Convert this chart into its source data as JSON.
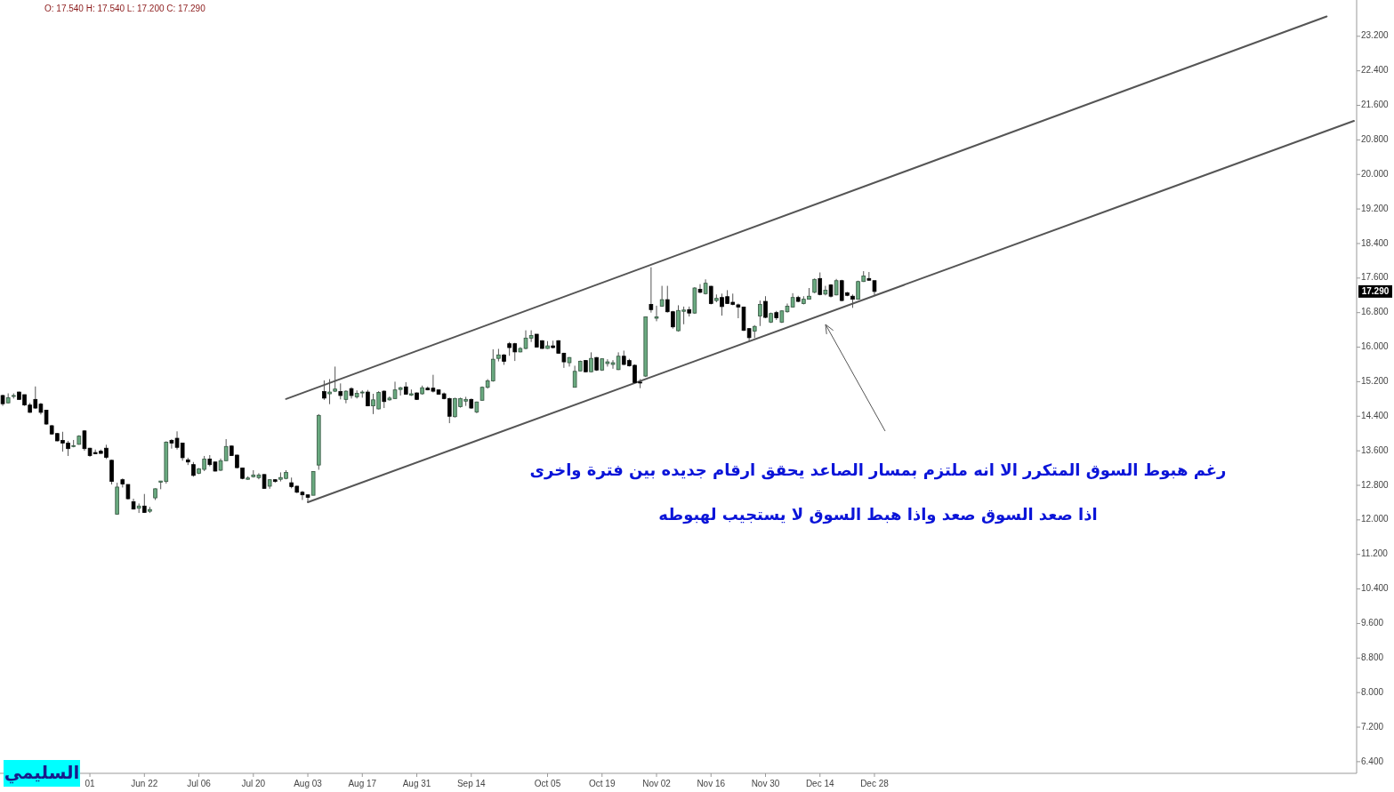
{
  "chart_data": {
    "type": "candlestick",
    "categories": [
      null,
      null,
      null,
      null,
      null,
      null,
      null,
      null,
      null,
      null,
      null,
      null,
      null,
      null,
      null,
      null,
      "01",
      null,
      null,
      null,
      null,
      null,
      null,
      null,
      null,
      null,
      "Jun 22",
      null,
      null,
      null,
      null,
      null,
      null,
      null,
      null,
      null,
      "Jul 06",
      null,
      null,
      null,
      null,
      null,
      null,
      null,
      null,
      null,
      "Jul 20",
      null,
      null,
      null,
      null,
      null,
      null,
      null,
      null,
      null,
      "Aug 03",
      null,
      null,
      null,
      null,
      null,
      null,
      null,
      null,
      null,
      "Aug 17",
      null,
      null,
      null,
      null,
      null,
      null,
      null,
      null,
      null,
      "Aug 31",
      null,
      null,
      null,
      null,
      null,
      null,
      null,
      null,
      null,
      "Sep 14",
      null,
      null,
      null,
      null,
      null,
      null,
      null,
      null,
      null,
      null,
      null,
      null,
      null,
      "Oct 05",
      null,
      null,
      null,
      null,
      null,
      null,
      null,
      null,
      null,
      "Oct 19",
      null,
      null,
      null,
      null,
      null,
      null,
      null,
      null,
      null,
      "Nov 02",
      null,
      null,
      null,
      null,
      null,
      null,
      null,
      null,
      null,
      "Nov 16",
      null,
      null,
      null,
      null,
      null,
      null,
      null,
      null,
      null,
      "Nov 30",
      null,
      null,
      null,
      null,
      null,
      null,
      null,
      null,
      null,
      "Dec 14",
      null,
      null,
      null,
      null,
      null,
      null,
      null,
      null,
      null,
      "Dec 28",
      null,
      null,
      null,
      null,
      null,
      null,
      null,
      null,
      null,
      null,
      null,
      null,
      null,
      null,
      null,
      null,
      null,
      null,
      null,
      null,
      null,
      null,
      null,
      null,
      null,
      null,
      null,
      null,
      null,
      null,
      null,
      null,
      null,
      null,
      null,
      null,
      null,
      null,
      null,
      null,
      null,
      null,
      null,
      null,
      null,
      null,
      null,
      null,
      null,
      null,
      null,
      null,
      null,
      null,
      null,
      null,
      null,
      null,
      null,
      null,
      null,
      null,
      null,
      null,
      null,
      null,
      null,
      null,
      null,
      null,
      null,
      null,
      null,
      null,
      null,
      null,
      null,
      null,
      null,
      null,
      null,
      null,
      null,
      null,
      null,
      null,
      null,
      null
    ],
    "ylim": [
      6.13,
      24.04
    ],
    "yticks": [
      {
        "value": 6.4,
        "label": "6.400"
      },
      {
        "value": 7.2,
        "label": "7.200"
      },
      {
        "value": 8.0,
        "label": "8.000"
      },
      {
        "value": 8.8,
        "label": "8.800"
      },
      {
        "value": 9.6,
        "label": "9.600"
      },
      {
        "value": 10.4,
        "label": "10.400"
      },
      {
        "value": 11.2,
        "label": "11.200"
      },
      {
        "value": 12.0,
        "label": "12.000"
      },
      {
        "value": 12.8,
        "label": "12.800"
      },
      {
        "value": 13.6,
        "label": "13.600"
      },
      {
        "value": 14.4,
        "label": "14.400"
      },
      {
        "value": 15.2,
        "label": "15.200"
      },
      {
        "value": 16.0,
        "label": "16.000"
      },
      {
        "value": 16.8,
        "label": "16.800"
      },
      {
        "value": 17.6,
        "label": "17.600"
      },
      {
        "value": 18.4,
        "label": "18.400"
      },
      {
        "value": 19.2,
        "label": "19.200"
      },
      {
        "value": 20.0,
        "label": "20.000"
      },
      {
        "value": 20.8,
        "label": "20.800"
      },
      {
        "value": 21.6,
        "label": "21.600"
      },
      {
        "value": 22.4,
        "label": "22.400"
      },
      {
        "value": 23.2,
        "label": "23.200"
      }
    ],
    "annotations": [
      "O: 17.540 H: 17.540 L: 17.200 C: 17.290",
      "رغم هبوط السوق المتكرر الا انه ملتزم بمسار الصاعد يحقق ارقام جديده بين فترة واخرى",
      "اذا صعد السوق صعد واذا هبط السوق لا يستجيب لهبوطه",
      "السليمي",
      {
        "text": "17.290",
        "y": 17.29
      }
    ],
    "series": [
      {
        "type": "line",
        "color": "#555555",
        "values": [
          null,
          null,
          null,
          null,
          null,
          null,
          null,
          null,
          null,
          null,
          null,
          null,
          null,
          null,
          null,
          null,
          null,
          null,
          null,
          null,
          null,
          null,
          null,
          null,
          null,
          null,
          null,
          null,
          null,
          null,
          null,
          null,
          null,
          null,
          null,
          null,
          null,
          null,
          null,
          null,
          null,
          null,
          null,
          null,
          null,
          null,
          null,
          null,
          null,
          null,
          null,
          null,
          14.8,
          null,
          null,
          null,
          null,
          null,
          null,
          null,
          null,
          null,
          null,
          null,
          null,
          null,
          null,
          null,
          null,
          null,
          null,
          null,
          null,
          null,
          null,
          null,
          null,
          null,
          null,
          null,
          null,
          null,
          null,
          null,
          null,
          null,
          null,
          null,
          null,
          null,
          null,
          null,
          null,
          null,
          null,
          null,
          null,
          null,
          null,
          null,
          null,
          null,
          null,
          null,
          null,
          null,
          null,
          null,
          null,
          null,
          null,
          null,
          null,
          null,
          null,
          null,
          null,
          null,
          null,
          null,
          null,
          null,
          null,
          null,
          null,
          null,
          null,
          null,
          null,
          null,
          null,
          null,
          null,
          null,
          null,
          null,
          null,
          null,
          null,
          null,
          null,
          null,
          null,
          null,
          null,
          null,
          null,
          null,
          null,
          null,
          null,
          null,
          null,
          null,
          null,
          null,
          null,
          null,
          null,
          null,
          null,
          null,
          null,
          null,
          null,
          null,
          null,
          null,
          null,
          null,
          null,
          null,
          null,
          null,
          null,
          null,
          null,
          null,
          null,
          null,
          null,
          null,
          null,
          null,
          null,
          null,
          null,
          null,
          null,
          null,
          null,
          null,
          null,
          null,
          null,
          null,
          null,
          null,
          null,
          null,
          null,
          null,
          null,
          null,
          null,
          null,
          null,
          null,
          null,
          null,
          null,
          null,
          null,
          null,
          null,
          null,
          null,
          null,
          null,
          null,
          null,
          null,
          null,
          null,
          null,
          null,
          null,
          null,
          null,
          null,
          null,
          null,
          null,
          null,
          null,
          null,
          null,
          null,
          null,
          null,
          null,
          null,
          null,
          23.66,
          null,
          null,
          null,
          null,
          null
        ]
      },
      {
        "type": "line",
        "color": "#555555",
        "values": [
          null,
          null,
          null,
          null,
          null,
          null,
          null,
          null,
          null,
          null,
          null,
          null,
          null,
          null,
          null,
          null,
          null,
          null,
          null,
          null,
          null,
          null,
          null,
          null,
          null,
          null,
          null,
          null,
          null,
          null,
          null,
          null,
          null,
          null,
          null,
          null,
          null,
          null,
          null,
          null,
          null,
          null,
          null,
          null,
          null,
          null,
          null,
          null,
          null,
          null,
          null,
          null,
          null,
          null,
          null,
          null,
          12.41,
          null,
          null,
          null,
          null,
          null,
          null,
          null,
          null,
          null,
          null,
          null,
          null,
          null,
          null,
          null,
          null,
          null,
          null,
          null,
          null,
          null,
          null,
          null,
          null,
          null,
          null,
          null,
          null,
          null,
          null,
          null,
          null,
          null,
          null,
          null,
          null,
          null,
          null,
          null,
          null,
          null,
          null,
          null,
          null,
          null,
          null,
          null,
          null,
          null,
          null,
          null,
          null,
          null,
          null,
          null,
          null,
          null,
          null,
          null,
          null,
          null,
          null,
          null,
          null,
          null,
          null,
          null,
          null,
          null,
          null,
          null,
          null,
          null,
          null,
          null,
          null,
          null,
          null,
          null,
          null,
          null,
          null,
          null,
          null,
          null,
          null,
          null,
          null,
          null,
          null,
          null,
          null,
          null,
          null,
          null,
          null,
          null,
          null,
          null,
          null,
          null,
          null,
          null,
          null,
          null,
          null,
          null,
          null,
          null,
          null,
          null,
          null,
          null,
          null,
          null,
          null,
          null,
          null,
          null,
          null,
          null,
          null,
          null,
          null,
          null,
          null,
          null,
          null,
          null,
          null,
          null,
          null,
          null,
          null,
          null,
          null,
          null,
          null,
          null,
          null,
          null,
          null,
          null,
          null,
          null,
          null,
          null,
          null,
          null,
          null,
          null,
          null,
          null,
          null,
          null,
          null,
          null,
          null,
          null,
          null,
          null,
          null,
          null,
          null,
          null,
          null,
          null,
          null,
          null,
          null,
          null,
          null,
          null,
          null,
          null,
          null,
          null,
          null,
          null,
          null,
          null,
          null,
          null,
          null,
          null,
          null,
          null,
          null,
          null,
          null,
          null,
          21.24
        ]
      },
      {
        "colors": [
          "#000000",
          "#6aaa80",
          "#6aaa80",
          "#000000",
          "#000000",
          "#000000",
          "#000000",
          "#000000",
          "#000000",
          "#000000",
          "#000000",
          "#000000",
          "#000000",
          "#6aaa80",
          "#6aaa80",
          "#000000",
          "#000000",
          "#000000",
          "#000000",
          "#000000",
          "#000000",
          "#6aaa80",
          "#000000",
          "#000000",
          "#000000",
          "#6aaa80",
          "#000000",
          "#6aaa80",
          "#6aaa80",
          "#6aaa80",
          "#6aaa80",
          "#000000",
          "#000000",
          "#000000",
          "#000000",
          "#000000",
          "#6aaa80",
          "#6aaa80",
          "#000000",
          "#000000",
          "#6aaa80",
          "#6aaa80",
          "#000000",
          "#000000",
          "#000000",
          "#6aaa80",
          "#6aaa80",
          "#6aaa80",
          "#000000",
          "#6aaa80",
          "#000000",
          "#6aaa80",
          "#6aaa80",
          "#000000",
          "#000000",
          "#000000",
          "#000000",
          "#6aaa80",
          "#6aaa80",
          "#000000",
          "#6aaa80",
          "#6aaa80",
          "#000000",
          "#6aaa80",
          "#000000",
          "#6aaa80",
          "#6aaa80",
          "#000000",
          "#6aaa80",
          "#6aaa80",
          "#000000",
          "#6aaa80",
          "#6aaa80",
          "#6aaa80",
          "#000000",
          "#6aaa80",
          "#000000",
          "#6aaa80",
          "#000000",
          "#000000",
          "#000000",
          "#000000",
          "#000000",
          "#6aaa80",
          "#6aaa80",
          "#6aaa80",
          "#000000",
          "#6aaa80",
          "#6aaa80",
          "#6aaa80",
          "#6aaa80",
          "#6aaa80",
          "#000000",
          "#000000",
          "#000000",
          "#6aaa80",
          "#6aaa80",
          "#6aaa80",
          "#000000",
          "#000000",
          "#6aaa80",
          "#000000",
          "#000000",
          "#000000",
          "#6aaa80",
          "#6aaa80",
          "#6aaa80",
          "#000000",
          "#6aaa80",
          "#000000",
          "#6aaa80",
          "#6aaa80",
          "#6aaa80",
          "#6aaa80",
          "#000000",
          "#000000",
          "#000000",
          "#000000",
          "#6aaa80",
          "#000000",
          "#6aaa80",
          "#6aaa80",
          "#000000",
          "#000000",
          "#6aaa80",
          "#6aaa80",
          "#000000",
          "#6aaa80",
          "#000000",
          "#6aaa80",
          "#000000",
          "#6aaa80",
          "#000000",
          "#000000",
          "#000000",
          "#000000",
          "#000000",
          "#000000",
          "#6aaa80",
          "#6aaa80",
          "#000000",
          "#6aaa80",
          "#000000",
          "#6aaa80",
          "#6aaa80",
          "#6aaa80",
          "#000000",
          "#6aaa80",
          "#6aaa80",
          "#6aaa80",
          "#000000",
          "#6aaa80",
          "#000000",
          "#6aaa80",
          "#000000",
          "#000000",
          "#000000",
          "#6aaa80",
          "#6aaa80",
          "#000000",
          "#000000",
          null,
          null,
          null,
          null,
          null,
          null,
          null,
          null,
          null,
          null,
          null,
          null,
          null,
          null,
          null,
          null,
          null,
          null,
          null,
          null,
          null,
          null,
          null,
          null,
          null,
          null,
          null,
          null,
          null,
          null,
          null,
          null,
          null,
          null,
          null,
          null,
          null,
          null,
          null,
          null,
          null,
          null,
          null,
          null,
          null,
          null,
          null,
          null,
          null,
          null,
          null,
          null,
          null,
          null,
          null,
          null,
          null,
          null,
          null,
          null,
          null,
          null,
          null,
          null,
          null,
          null,
          null,
          null,
          null,
          null,
          null,
          null,
          null,
          null,
          null,
          null,
          null,
          null,
          null,
          null,
          null,
          null,
          null,
          null,
          null,
          null,
          null,
          null
        ],
        "ohlc": [
          [
            14.88,
            14.9,
            14.64,
            14.69
          ],
          [
            14.71,
            14.93,
            14.7,
            14.83
          ],
          [
            14.86,
            14.93,
            14.81,
            14.88
          ],
          [
            14.96,
            14.97,
            14.78,
            14.79
          ],
          [
            14.9,
            14.9,
            14.64,
            14.66
          ],
          [
            14.66,
            14.71,
            14.48,
            14.49
          ],
          [
            14.79,
            15.09,
            14.57,
            14.59
          ],
          [
            14.68,
            14.71,
            14.44,
            14.49
          ],
          [
            14.54,
            14.55,
            14.2,
            14.22
          ],
          [
            14.18,
            14.2,
            13.97,
            13.99
          ],
          [
            14.0,
            14.01,
            13.82,
            13.83
          ],
          [
            13.84,
            14.04,
            13.58,
            13.78
          ],
          [
            13.78,
            13.83,
            13.48,
            13.65
          ],
          [
            13.7,
            13.85,
            13.68,
            13.72
          ],
          [
            13.75,
            13.96,
            13.74,
            13.94
          ],
          [
            14.06,
            14.08,
            13.6,
            13.65
          ],
          [
            13.66,
            13.67,
            13.46,
            13.49
          ],
          [
            13.56,
            13.63,
            13.52,
            13.53
          ],
          [
            13.59,
            13.63,
            13.53,
            13.54
          ],
          [
            13.66,
            13.74,
            13.41,
            13.45
          ],
          [
            13.38,
            13.39,
            12.82,
            12.89
          ],
          [
            12.13,
            12.86,
            12.13,
            12.76
          ],
          [
            12.93,
            12.96,
            12.75,
            12.83
          ],
          [
            12.82,
            12.82,
            12.47,
            12.49
          ],
          [
            12.42,
            12.49,
            12.24,
            12.25
          ],
          [
            12.27,
            12.38,
            12.16,
            12.32
          ],
          [
            12.32,
            12.6,
            12.16,
            12.17
          ],
          [
            12.2,
            12.3,
            12.16,
            12.24
          ],
          [
            12.51,
            12.73,
            12.46,
            12.72
          ],
          [
            12.87,
            12.9,
            12.71,
            12.9
          ],
          [
            12.89,
            13.82,
            12.84,
            13.8
          ],
          [
            13.84,
            13.87,
            13.65,
            13.78
          ],
          [
            13.89,
            14.05,
            13.63,
            13.68
          ],
          [
            13.78,
            13.78,
            13.37,
            13.44
          ],
          [
            13.39,
            13.44,
            13.27,
            13.34
          ],
          [
            13.28,
            13.34,
            13.0,
            13.03
          ],
          [
            13.08,
            13.2,
            13.06,
            13.18
          ],
          [
            13.17,
            13.48,
            13.13,
            13.41
          ],
          [
            13.41,
            13.5,
            13.24,
            13.28
          ],
          [
            13.34,
            13.35,
            13.12,
            13.13
          ],
          [
            13.15,
            13.42,
            13.13,
            13.37
          ],
          [
            13.37,
            13.87,
            13.37,
            13.7
          ],
          [
            13.71,
            13.72,
            13.48,
            13.49
          ],
          [
            13.5,
            13.51,
            13.19,
            13.21
          ],
          [
            13.2,
            13.21,
            12.94,
            12.96
          ],
          [
            12.94,
            13.01,
            12.93,
            12.97
          ],
          [
            13.0,
            13.15,
            12.98,
            13.04
          ],
          [
            12.98,
            13.08,
            12.94,
            13.04
          ],
          [
            13.05,
            13.06,
            12.72,
            12.73
          ],
          [
            12.78,
            12.94,
            12.72,
            12.93
          ],
          [
            12.93,
            12.94,
            12.86,
            12.89
          ],
          [
            12.94,
            13.1,
            12.89,
            12.98
          ],
          [
            12.96,
            13.15,
            12.94,
            13.1
          ],
          [
            12.86,
            12.98,
            12.73,
            12.77
          ],
          [
            12.78,
            12.79,
            12.62,
            12.64
          ],
          [
            12.64,
            12.67,
            12.46,
            12.58
          ],
          [
            12.58,
            12.58,
            12.41,
            12.52
          ],
          [
            12.57,
            13.13,
            12.57,
            13.12
          ],
          [
            13.27,
            14.45,
            13.16,
            14.42
          ],
          [
            14.97,
            15.23,
            14.78,
            14.82
          ],
          [
            14.92,
            15.26,
            14.68,
            14.96
          ],
          [
            14.98,
            15.55,
            14.96,
            15.03
          ],
          [
            14.97,
            15.16,
            14.79,
            14.88
          ],
          [
            14.79,
            15.0,
            14.7,
            14.98
          ],
          [
            15.04,
            15.07,
            14.81,
            14.88
          ],
          [
            14.85,
            15.0,
            14.81,
            14.93
          ],
          [
            14.94,
            15.0,
            14.83,
            14.96
          ],
          [
            14.96,
            15.01,
            14.63,
            14.64
          ],
          [
            14.64,
            14.92,
            14.45,
            14.78
          ],
          [
            14.57,
            14.98,
            14.56,
            14.95
          ],
          [
            14.98,
            15.0,
            14.59,
            14.74
          ],
          [
            14.78,
            14.86,
            14.76,
            14.82
          ],
          [
            14.81,
            15.2,
            14.81,
            15.01
          ],
          [
            15.02,
            15.08,
            14.88,
            15.06
          ],
          [
            15.08,
            15.19,
            14.9,
            14.91
          ],
          [
            14.89,
            15.02,
            14.87,
            14.92
          ],
          [
            14.94,
            14.95,
            14.78,
            14.79
          ],
          [
            14.92,
            15.11,
            14.9,
            15.06
          ],
          [
            15.05,
            15.09,
            15.0,
            15.01
          ],
          [
            15.05,
            15.36,
            14.95,
            14.98
          ],
          [
            15.01,
            15.02,
            14.9,
            14.91
          ],
          [
            14.92,
            14.95,
            14.79,
            14.81
          ],
          [
            14.81,
            14.83,
            14.24,
            14.4
          ],
          [
            14.39,
            14.83,
            14.37,
            14.81
          ],
          [
            14.62,
            14.83,
            14.6,
            14.81
          ],
          [
            14.75,
            14.85,
            14.64,
            14.79
          ],
          [
            14.79,
            14.81,
            14.57,
            14.59
          ],
          [
            14.5,
            14.74,
            14.47,
            14.73
          ],
          [
            14.77,
            15.09,
            14.76,
            15.07
          ],
          [
            15.07,
            15.26,
            15.04,
            15.22
          ],
          [
            15.22,
            15.95,
            15.2,
            15.72
          ],
          [
            15.74,
            15.96,
            15.67,
            15.82
          ],
          [
            15.82,
            15.84,
            15.59,
            15.67
          ],
          [
            16.08,
            16.12,
            15.8,
            15.99
          ],
          [
            16.08,
            16.1,
            15.68,
            15.89
          ],
          [
            15.89,
            16.0,
            15.88,
            15.97
          ],
          [
            15.97,
            16.39,
            15.95,
            16.21
          ],
          [
            16.21,
            16.39,
            16.12,
            16.27
          ],
          [
            16.3,
            16.3,
            15.99,
            16.0
          ],
          [
            16.15,
            16.16,
            15.96,
            15.97
          ],
          [
            15.97,
            16.14,
            15.96,
            16.03
          ],
          [
            16.03,
            16.15,
            15.97,
            15.99
          ],
          [
            16.15,
            16.16,
            15.85,
            15.86
          ],
          [
            15.86,
            15.87,
            15.52,
            15.66
          ],
          [
            15.64,
            15.77,
            15.55,
            15.76
          ],
          [
            15.07,
            15.57,
            15.07,
            15.44
          ],
          [
            15.45,
            15.69,
            15.44,
            15.67
          ],
          [
            15.69,
            15.7,
            15.42,
            15.43
          ],
          [
            15.43,
            15.88,
            15.42,
            15.74
          ],
          [
            15.76,
            15.77,
            15.45,
            15.47
          ],
          [
            15.47,
            15.74,
            15.45,
            15.73
          ],
          [
            15.62,
            15.72,
            15.55,
            15.66
          ],
          [
            15.6,
            15.7,
            15.5,
            15.64
          ],
          [
            15.48,
            15.88,
            15.47,
            15.79
          ],
          [
            15.79,
            15.92,
            15.58,
            15.6
          ],
          [
            15.69,
            15.73,
            15.55,
            15.57
          ],
          [
            15.58,
            15.6,
            15.16,
            15.18
          ],
          [
            15.19,
            15.26,
            15.05,
            15.17
          ],
          [
            15.33,
            16.71,
            15.31,
            16.7
          ],
          [
            16.99,
            17.85,
            16.8,
            16.87
          ],
          [
            16.67,
            16.96,
            16.6,
            16.7
          ],
          [
            16.95,
            17.42,
            16.94,
            17.1
          ],
          [
            17.1,
            17.42,
            16.8,
            16.82
          ],
          [
            16.82,
            16.84,
            16.43,
            16.47
          ],
          [
            16.38,
            16.97,
            16.36,
            16.85
          ],
          [
            16.83,
            16.94,
            16.53,
            16.86
          ],
          [
            16.87,
            16.94,
            16.71,
            16.79
          ],
          [
            16.79,
            17.39,
            16.77,
            17.37
          ],
          [
            17.34,
            17.46,
            17.25,
            17.27
          ],
          [
            17.24,
            17.57,
            17.22,
            17.48
          ],
          [
            17.41,
            17.42,
            16.99,
            17.01
          ],
          [
            17.08,
            17.22,
            17.04,
            17.13
          ],
          [
            17.15,
            17.24,
            16.73,
            16.94
          ],
          [
            17.17,
            17.32,
            17.0,
            17.01
          ],
          [
            17.04,
            17.24,
            16.97,
            16.99
          ],
          [
            16.98,
            17.01,
            16.67,
            16.93
          ],
          [
            16.93,
            16.94,
            16.37,
            16.39
          ],
          [
            16.43,
            16.44,
            16.15,
            16.22
          ],
          [
            16.37,
            16.51,
            16.21,
            16.48
          ],
          [
            16.72,
            17.08,
            16.49,
            16.99
          ],
          [
            17.06,
            17.18,
            16.67,
            16.69
          ],
          [
            16.58,
            16.8,
            16.56,
            16.78
          ],
          [
            16.8,
            16.84,
            16.63,
            16.68
          ],
          [
            16.58,
            16.85,
            16.56,
            16.84
          ],
          [
            16.82,
            17.01,
            16.8,
            16.95
          ],
          [
            16.93,
            17.25,
            16.92,
            17.15
          ],
          [
            17.15,
            17.19,
            17.04,
            17.06
          ],
          [
            17.01,
            17.18,
            16.99,
            17.11
          ],
          [
            17.11,
            17.37,
            17.1,
            17.18
          ],
          [
            17.27,
            17.59,
            17.25,
            17.57
          ],
          [
            17.59,
            17.73,
            17.2,
            17.22
          ],
          [
            17.23,
            17.42,
            17.2,
            17.32
          ],
          [
            17.44,
            17.46,
            17.15,
            17.18
          ],
          [
            17.21,
            17.58,
            17.2,
            17.54
          ],
          [
            17.54,
            17.56,
            17.06,
            17.08
          ],
          [
            17.26,
            17.28,
            17.18,
            17.2
          ],
          [
            17.18,
            17.22,
            16.91,
            17.11
          ],
          [
            17.11,
            17.54,
            17.1,
            17.52
          ],
          [
            17.52,
            17.76,
            17.51,
            17.65
          ],
          [
            17.59,
            17.74,
            17.54,
            17.55
          ],
          [
            17.54,
            17.54,
            17.2,
            17.29
          ],
          null,
          null,
          null,
          null,
          null,
          null,
          null,
          null,
          null,
          null,
          null,
          null,
          null,
          null,
          null,
          null,
          null,
          null,
          null,
          null,
          null,
          null,
          null,
          null,
          null,
          null,
          null,
          null,
          null,
          null,
          null,
          null,
          null,
          null,
          null,
          null,
          null,
          null,
          null,
          null,
          null,
          null,
          null,
          null,
          null,
          null,
          null,
          null,
          null,
          null,
          null,
          null,
          null,
          null,
          null,
          null,
          null,
          null,
          null,
          null,
          null,
          null,
          null,
          null,
          null,
          null,
          null,
          null,
          null,
          null,
          null,
          null,
          null,
          null,
          null,
          null,
          null,
          null,
          null,
          null,
          null,
          null,
          null,
          null,
          null,
          null,
          null,
          null
        ]
      }
    ]
  }
}
